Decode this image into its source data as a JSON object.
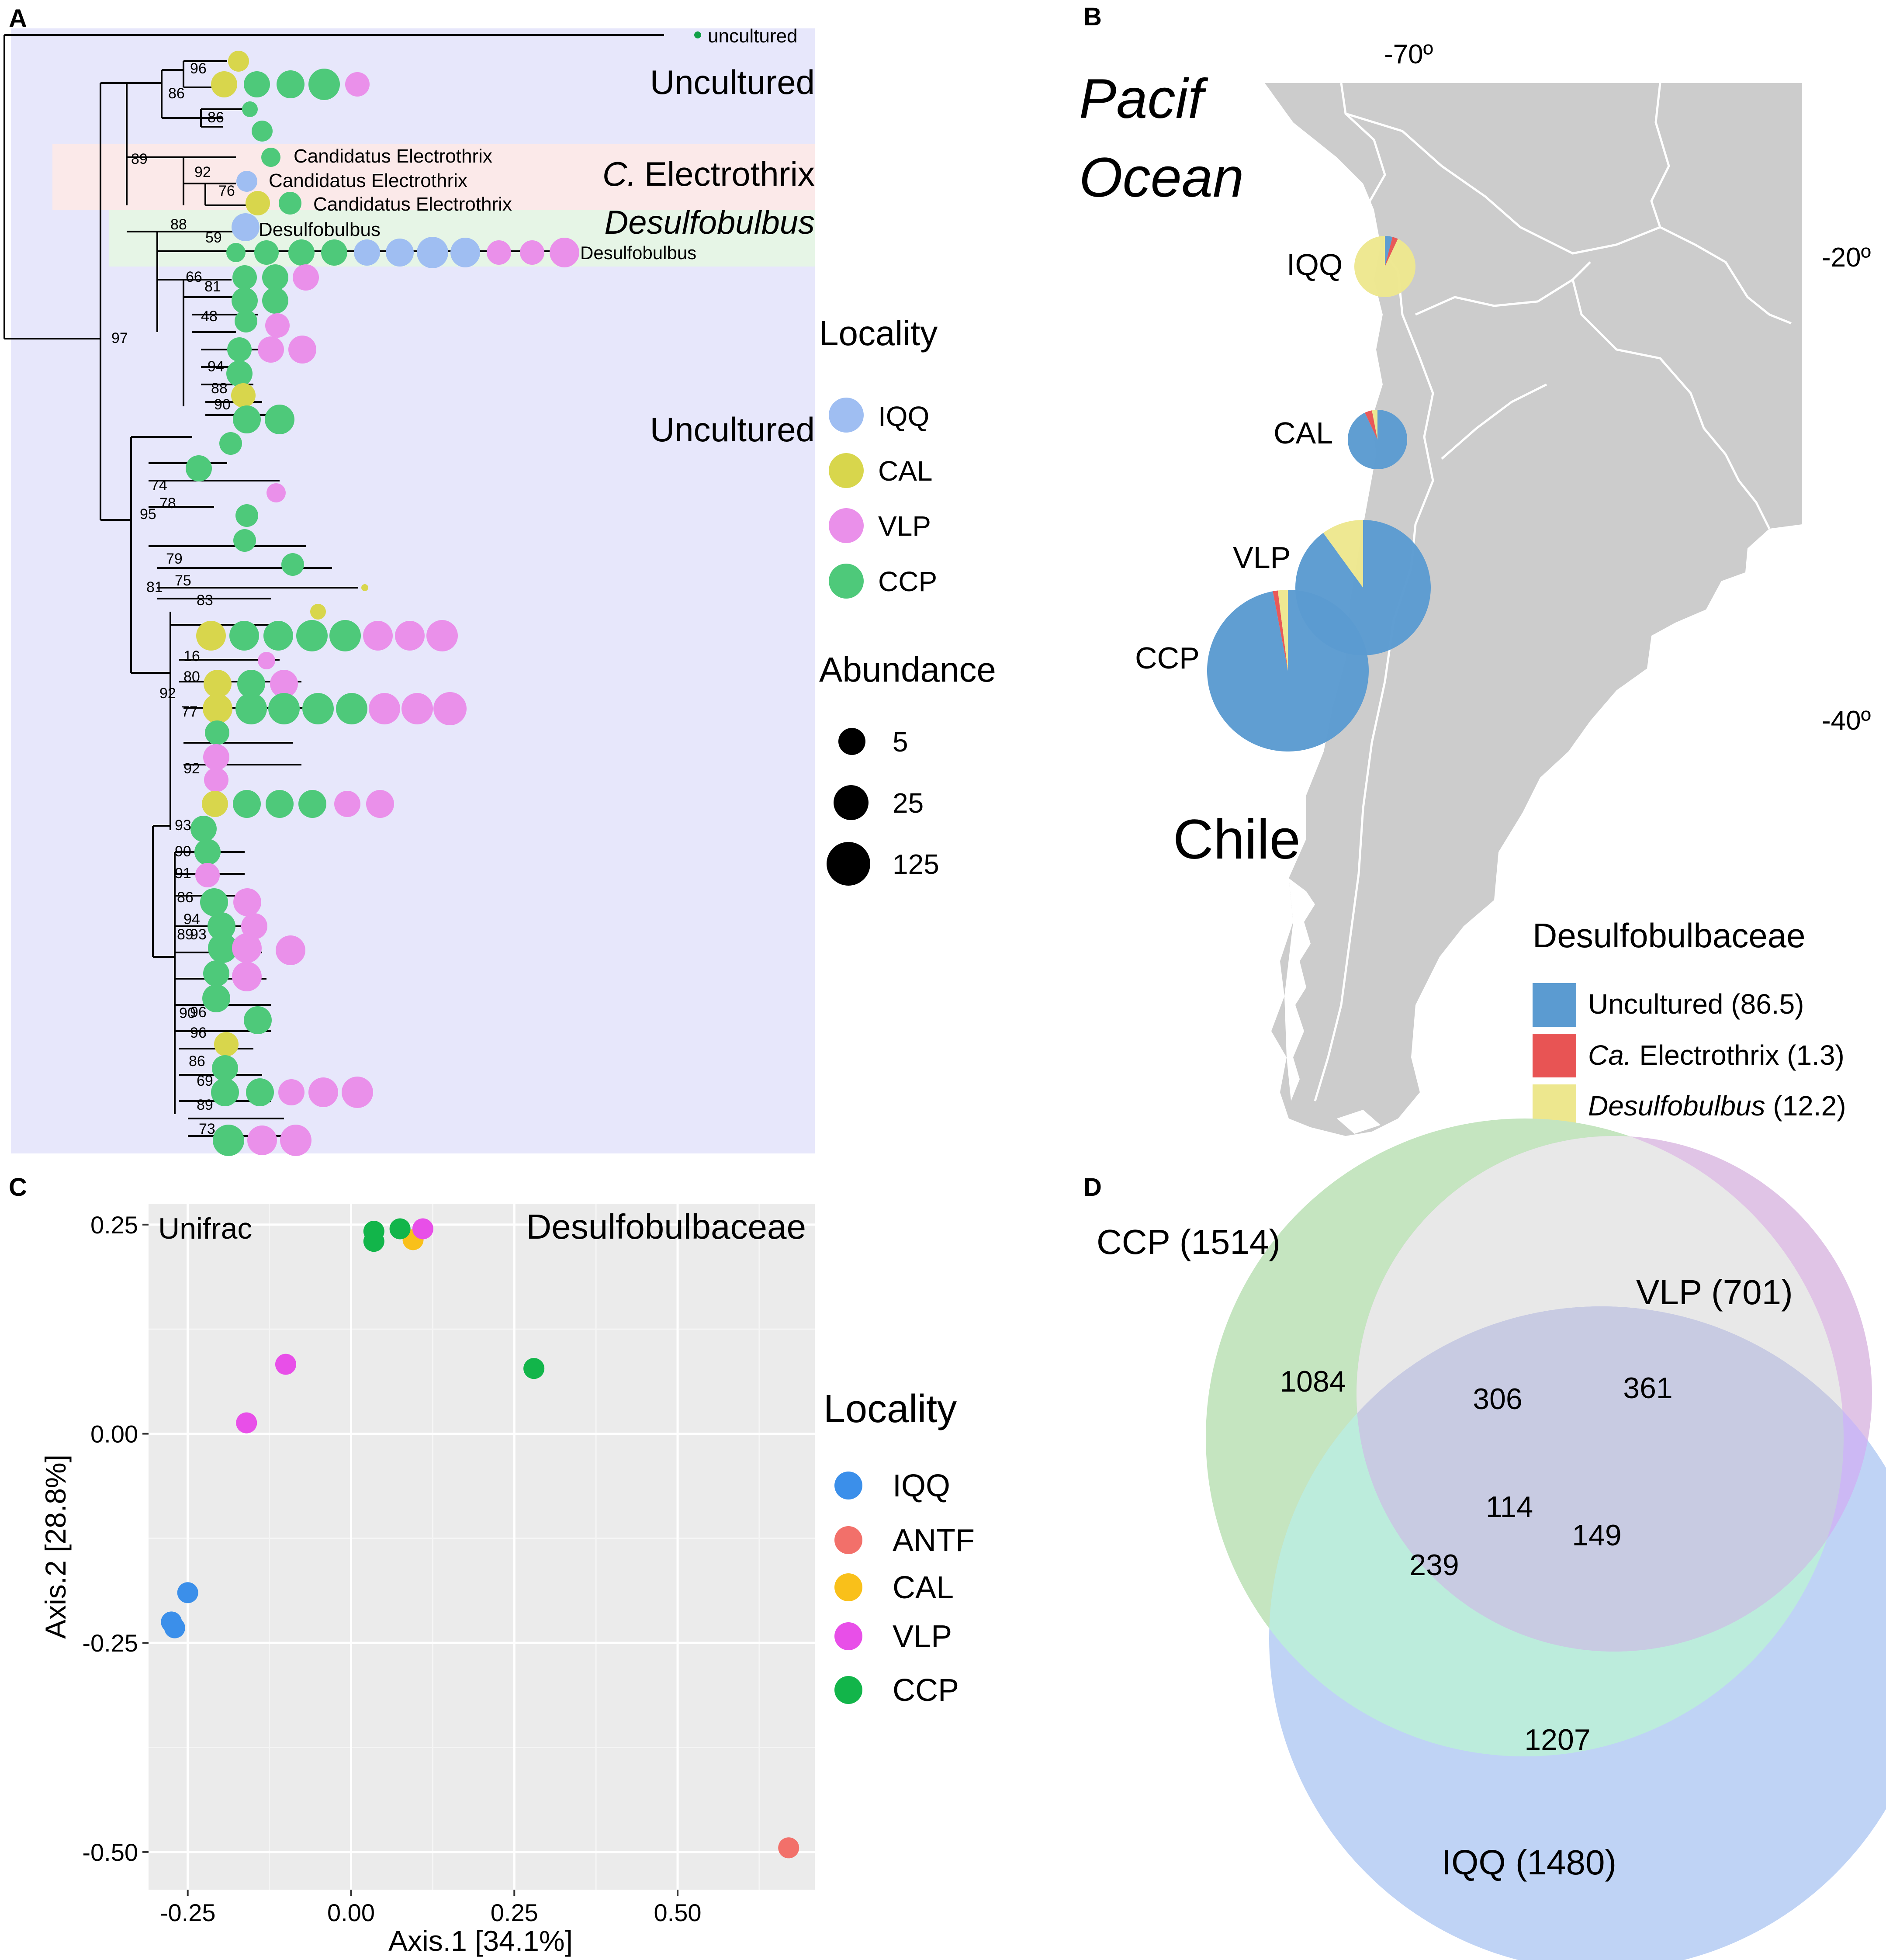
{
  "panel_labels": {
    "a": "A",
    "b": "B",
    "c": "C",
    "d": "D"
  },
  "colors": {
    "IQQ": "#9fbef2",
    "CAL": "#d8d64c",
    "VLP": "#ea90ea",
    "CCP": "#4ec97a",
    "bg_uncultured": "#e7e7fb",
    "bg_electrothrix": "#fbe9e9",
    "bg_desulfobulbus": "#e6f5e6",
    "map_land": "#cccccc",
    "map_border": "#ffffff",
    "pie_uncultured": "#5b9bd1",
    "pie_electrothrix": "#e85454",
    "pie_desulfobulbus": "#ede78e",
    "pcoa_bg": "#ebebeb",
    "pcoa_IQQ": "#3b8fea",
    "pcoa_ANTF": "#f2706a",
    "pcoa_CAL": "#f9c01a",
    "pcoa_VLP": "#e84fe8",
    "pcoa_CCP": "#12b54a",
    "venn_CCP": "#c5e5c0",
    "venn_VLP": "#e0c4e6",
    "venn_IQQ": "#bfd3f5",
    "venn_CCP_VLP": "#e8e8e8",
    "venn_CCP_IQQ": "#bcecdc",
    "venn_VLP_IQQ": "#ccb8f4",
    "venn_all": "#c8cbe2"
  },
  "panel_a": {
    "clade_labels": {
      "uncultured_top": "Uncultured",
      "electrothrix": "C. Electrothrix",
      "desulfobulbus": "Desulfobulbus",
      "uncultured_mid": "Uncultured"
    },
    "electrothrix_prefix": "C.",
    "electrothrix_rest": "Electrothrix",
    "outgroup_label": "uncultured",
    "tip_labels": [
      "Candidatus  Electrothrix",
      "Candidatus  Electrothrix",
      "Candidatus  Electrothrix",
      "Desulfobulbus",
      "Desulfobulbus"
    ],
    "bootstrap_values": [
      "96",
      "86",
      "86",
      "89",
      "92",
      "76",
      "88",
      "59",
      "97",
      "66",
      "81",
      "48",
      "94",
      "88",
      "90",
      "74",
      "78",
      "95",
      "79",
      "75",
      "83",
      "81",
      "16",
      "80",
      "92",
      "77",
      "92",
      "93",
      "90",
      "91",
      "86",
      "94",
      "89",
      "93",
      "90",
      "96",
      "96",
      "86",
      "69",
      "89",
      "73"
    ],
    "legend": {
      "locality_title": "Locality",
      "locality_items": [
        "IQQ",
        "CAL",
        "VLP",
        "CCP"
      ],
      "abundance_title": "Abundance",
      "abundance_items": [
        "5",
        "25",
        "125"
      ]
    }
  },
  "panel_b": {
    "ocean_label_line1": "Pacif",
    "ocean_label_line2": "Ocean",
    "country_label": "Chile",
    "lon_label": "-70º",
    "lat_labels": [
      "-20º",
      "-40º"
    ],
    "sites": [
      {
        "name": "IQQ",
        "uncultured": 4,
        "electrothrix": 3,
        "desulfobulbus": 93
      },
      {
        "name": "CAL",
        "uncultured": 93,
        "electrothrix": 4,
        "desulfobulbus": 3
      },
      {
        "name": "VLP",
        "uncultured": 90,
        "electrothrix": 0,
        "desulfobulbus": 10
      },
      {
        "name": "CCP",
        "uncultured": 97,
        "electrothrix": 1,
        "desulfobulbus": 2
      }
    ],
    "legend": {
      "title": "Desulfobulbaceae",
      "items": [
        {
          "prefix": "Uncultured",
          "value": " (86.5)"
        },
        {
          "prefix": "Ca.",
          "rest": " Electrothrix",
          "value": " (1.3)"
        },
        {
          "prefix": "Desulfobulbus",
          "value": " (12.2)"
        }
      ]
    }
  },
  "chart_data": [
    {
      "type": "scatter",
      "title": "Desulfobulbaceae",
      "subtitle": "Unifrac",
      "xlabel": "Axis.1   [34.1%]",
      "ylabel": "Axis.2   [28.8%]",
      "xlim": [
        -0.31,
        0.71
      ],
      "ylim": [
        -0.545,
        0.275
      ],
      "xticks": [
        -0.25,
        0.0,
        0.25,
        0.5
      ],
      "xtick_labels": [
        "-0.25",
        "0.00",
        "0.25",
        "0.50"
      ],
      "yticks": [
        0.25,
        0.0,
        -0.25,
        -0.5
      ],
      "ytick_labels": [
        "0.25",
        "0.00",
        "-0.25",
        "-0.50"
      ],
      "legend_title": "Locality",
      "legend_items": [
        "IQQ",
        "ANTF",
        "CAL",
        "VLP",
        "CCP"
      ],
      "series": [
        {
          "name": "IQQ",
          "points": [
            [
              -0.25,
              -0.19
            ],
            [
              -0.275,
              -0.225
            ],
            [
              -0.27,
              -0.232
            ]
          ]
        },
        {
          "name": "ANTF",
          "points": [
            [
              0.67,
              -0.495
            ]
          ]
        },
        {
          "name": "CAL",
          "points": [
            [
              0.095,
              0.232
            ]
          ]
        },
        {
          "name": "VLP",
          "points": [
            [
              0.11,
              0.245
            ],
            [
              -0.1,
              0.083
            ],
            [
              -0.16,
              0.013
            ]
          ]
        },
        {
          "name": "CCP",
          "points": [
            [
              0.035,
              0.242
            ],
            [
              0.035,
              0.23
            ],
            [
              0.075,
              0.245
            ],
            [
              0.28,
              0.078
            ]
          ]
        }
      ]
    },
    {
      "type": "venn",
      "sets": [
        {
          "name": "CCP",
          "label": "CCP (1514)",
          "only": "1084"
        },
        {
          "name": "VLP",
          "label": "VLP (701)",
          "only": "361"
        },
        {
          "name": "IQQ",
          "label": "IQQ (1480)",
          "only": "1207"
        }
      ],
      "intersections": {
        "CCP_VLP": "306",
        "CCP_IQQ": "239",
        "VLP_IQQ": "149",
        "all": "114"
      }
    }
  ]
}
